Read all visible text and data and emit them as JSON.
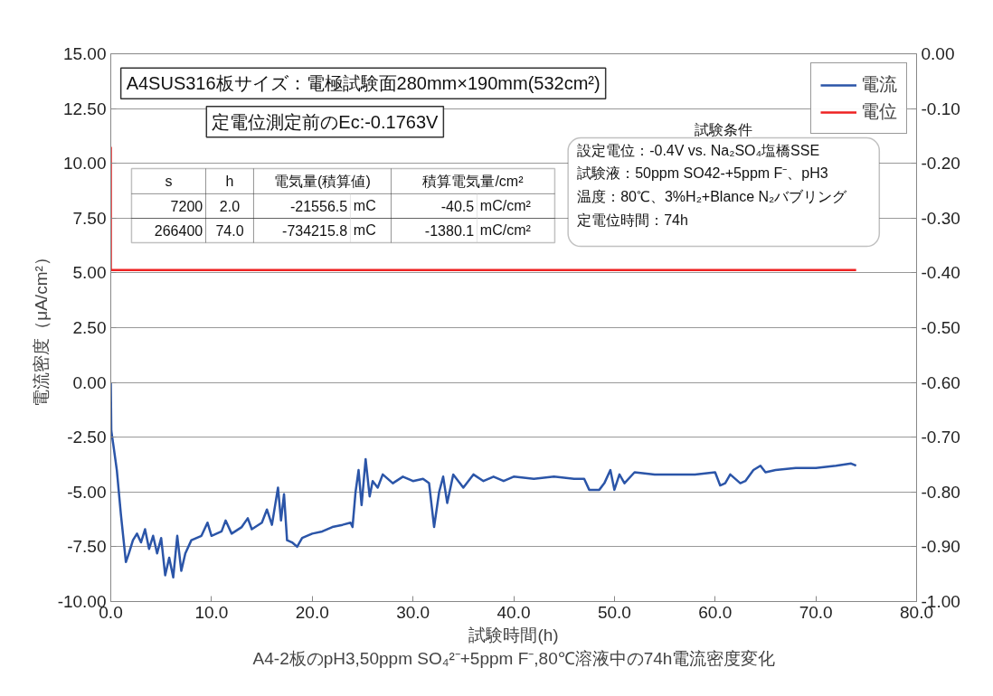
{
  "chart_data": {
    "type": "line",
    "xlabel": "試験時間(h)",
    "ylabel": "電流密度（μA/cm²）",
    "xlim": [
      0,
      80
    ],
    "ylim": [
      -10,
      15
    ],
    "y2lim": [
      -1,
      0
    ],
    "xticks": [
      {
        "value": 0,
        "label": "0.0"
      },
      {
        "value": 10,
        "label": "10.0"
      },
      {
        "value": 20,
        "label": "20.0"
      },
      {
        "value": 30,
        "label": "30.0"
      },
      {
        "value": 40,
        "label": "40.0"
      },
      {
        "value": 50,
        "label": "50.0"
      },
      {
        "value": 60,
        "label": "60.0"
      },
      {
        "value": 70,
        "label": "70.0"
      },
      {
        "value": 80,
        "label": "80.0"
      }
    ],
    "yticks": [
      {
        "value": -10,
        "label": "-10.00"
      },
      {
        "value": -7.5,
        "label": "-7.50"
      },
      {
        "value": -5,
        "label": "-5.00"
      },
      {
        "value": -2.5,
        "label": "-2.50"
      },
      {
        "value": 0,
        "label": "0.00"
      },
      {
        "value": 2.5,
        "label": "2.50"
      },
      {
        "value": 5,
        "label": "5.00"
      },
      {
        "value": 7.5,
        "label": "7.50"
      },
      {
        "value": 10,
        "label": "10.00"
      },
      {
        "value": 12.5,
        "label": "12.50"
      },
      {
        "value": 15,
        "label": "15.00"
      }
    ],
    "y2ticks": [
      {
        "value": -1,
        "label": "-1.00"
      },
      {
        "value": -0.9,
        "label": "-0.90"
      },
      {
        "value": -0.8,
        "label": "-0.80"
      },
      {
        "value": -0.7,
        "label": "-0.70"
      },
      {
        "value": -0.6,
        "label": "-0.60"
      },
      {
        "value": -0.5,
        "label": "-0.50"
      },
      {
        "value": -0.4,
        "label": "-0.40"
      },
      {
        "value": -0.3,
        "label": "-0.30"
      },
      {
        "value": -0.2,
        "label": "-0.20"
      },
      {
        "value": -0.1,
        "label": "-0.10"
      },
      {
        "value": 0,
        "label": "0.00"
      }
    ],
    "grid": "y",
    "legend": "top right",
    "marker": "none",
    "line_style": "solid",
    "series": [
      {
        "name": "電流",
        "color": "#2b55a8",
        "x": [
          0,
          0.05,
          0.3,
          0.6,
          1.0,
          1.5,
          1.8,
          2.2,
          2.6,
          3.0,
          3.4,
          3.8,
          4.2,
          4.6,
          5.0,
          5.4,
          5.8,
          6.2,
          6.6,
          7.0,
          7.4,
          8.0,
          9.0,
          9.6,
          10.0,
          11.0,
          11.4,
          12.0,
          13.0,
          13.6,
          14.0,
          15.0,
          15.5,
          16.0,
          16.6,
          16.9,
          17.2,
          17.5,
          18.0,
          18.5,
          19.0,
          20.0,
          21.0,
          22.0,
          23.0,
          23.8,
          24.0,
          24.3,
          24.6,
          24.9,
          25.3,
          25.7,
          26.0,
          26.5,
          27.0,
          28.0,
          29.0,
          30.0,
          31.0,
          31.6,
          32.1,
          32.6,
          33.0,
          33.4,
          34.0,
          35.0,
          36.0,
          37.0,
          38.0,
          39.0,
          40.0,
          42.0,
          44.0,
          46.0,
          47.0,
          47.5,
          48.5,
          49.0,
          49.6,
          50.0,
          50.5,
          51.0,
          52.0,
          54.0,
          56.0,
          58.0,
          60.0,
          60.5,
          61.0,
          61.5,
          62.5,
          63.0,
          63.8,
          64.5,
          65.0,
          66.0,
          68.0,
          70.0,
          72.0,
          73.5,
          74.0
        ],
        "values": [
          0,
          -2.2,
          -3.0,
          -4.0,
          -6.0,
          -8.2,
          -7.8,
          -7.2,
          -6.9,
          -7.3,
          -6.7,
          -7.6,
          -7.0,
          -7.8,
          -7.1,
          -8.8,
          -8.0,
          -8.9,
          -7.0,
          -8.6,
          -7.8,
          -7.2,
          -7.0,
          -6.4,
          -7.0,
          -6.8,
          -6.3,
          -6.9,
          -6.6,
          -6.2,
          -6.7,
          -6.4,
          -5.8,
          -6.5,
          -4.8,
          -6.3,
          -5.1,
          -7.2,
          -7.3,
          -7.5,
          -7.1,
          -6.9,
          -6.8,
          -6.6,
          -6.5,
          -6.4,
          -6.6,
          -5.0,
          -4.0,
          -5.6,
          -3.5,
          -5.2,
          -4.5,
          -4.8,
          -4.2,
          -4.6,
          -4.3,
          -4.5,
          -4.4,
          -4.6,
          -6.6,
          -5.0,
          -4.3,
          -5.5,
          -4.2,
          -4.8,
          -4.2,
          -4.5,
          -4.3,
          -4.5,
          -4.3,
          -4.4,
          -4.3,
          -4.4,
          -4.4,
          -4.9,
          -4.9,
          -4.6,
          -4.0,
          -4.9,
          -4.2,
          -4.6,
          -4.1,
          -4.2,
          -4.2,
          -4.2,
          -4.1,
          -4.7,
          -4.6,
          -4.2,
          -4.6,
          -4.5,
          -4.0,
          -3.8,
          -4.1,
          -4.0,
          -3.9,
          -3.9,
          -3.8,
          -3.7,
          -3.8
        ]
      },
      {
        "name": "電位",
        "color": "#ee2222",
        "axis": "y2",
        "x": [
          0,
          0,
          74
        ],
        "values": [
          -0.17,
          -0.395,
          -0.395
        ]
      }
    ],
    "annotations": [
      "A4SUS316板サイズ：電極試験面280mm×190mm(532cm²)",
      "定電位測定前のEc:-0.1763V",
      "試験条件",
      "設定電位：-0.4V vs. Na₂SO₄塩橋SSE",
      "試験液：50ppm SO42-+5ppm F⁻、pH3",
      "温度：80℃、3%H₂+Blance N₂バブリング",
      "定電位時間：74h",
      "s",
      "h",
      "電気量(積算値)",
      "積算電気量/cm²",
      "7200",
      "2.0",
      "-21556.5",
      "mC",
      "-40.5",
      "mC/cm²",
      "266400",
      "74.0",
      "-734215.8",
      "mC",
      "-1380.1",
      "mC/cm²",
      "A4-2板のpH3,50ppm SO₄²⁻+5ppm F⁻,80℃溶液中の74h電流密度変化"
    ]
  }
}
